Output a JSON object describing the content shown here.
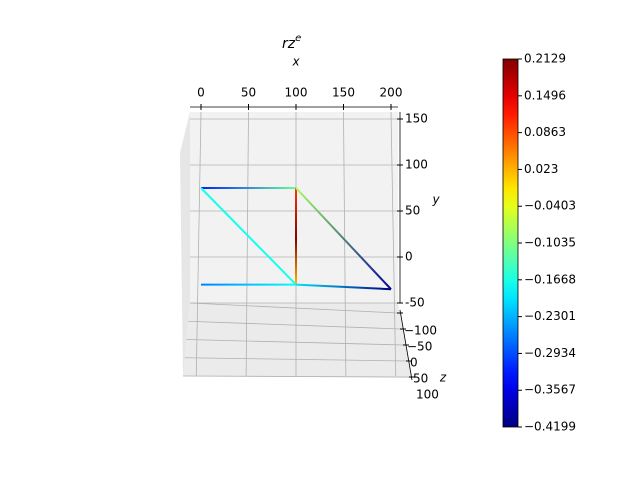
{
  "chart_data": {
    "type": "line3d",
    "title": "rz",
    "title_superscript": "e",
    "xlabel": "x",
    "ylabel": "y",
    "zlabel": "z",
    "xlim": [
      0,
      200
    ],
    "xticks": [
      0,
      50,
      100,
      150,
      200
    ],
    "ylim": [
      -50,
      150
    ],
    "yticks": [
      -50,
      0,
      50,
      100,
      150
    ],
    "zlim": [
      -100,
      100
    ],
    "zticks": [
      {
        "value": -100,
        "label": "−100"
      },
      {
        "value": -50,
        "label": "−50"
      },
      0,
      50,
      100
    ],
    "grid": true,
    "colormap": "jet",
    "clim": [
      -0.4199,
      0.2129
    ],
    "cticks": [
      {
        "value": -0.4199,
        "label": "−0.4199"
      },
      {
        "value": -0.3567,
        "label": "−0.3567"
      },
      {
        "value": -0.2934,
        "label": "−0.2934"
      },
      {
        "value": -0.2301,
        "label": "−0.2301"
      },
      {
        "value": -0.1668,
        "label": "−0.1668"
      },
      {
        "value": -0.1035,
        "label": "−0.1035"
      },
      {
        "value": -0.0403,
        "label": "−0.0403"
      },
      0.023,
      0.0863,
      0.1496,
      0.2129
    ],
    "series": [
      {
        "x": [
          0,
          100
        ],
        "y": [
          75,
          75
        ],
        "c": [
          -0.32,
          -0.12
        ]
      },
      {
        "x": [
          0,
          100
        ],
        "y": [
          75,
          -30
        ],
        "c": [
          -0.17,
          -0.17
        ]
      },
      {
        "x": [
          100,
          100,
          100
        ],
        "y": [
          75,
          20,
          -30
        ],
        "c": [
          0.1,
          0.21,
          0.02
        ]
      },
      {
        "x": [
          100,
          200
        ],
        "y": [
          75,
          -35
        ],
        "c": [
          -0.08,
          -0.4
        ]
      },
      {
        "x": [
          0,
          100
        ],
        "y": [
          -30,
          -30
        ],
        "c": [
          -0.26,
          -0.18
        ]
      },
      {
        "x": [
          100,
          200
        ],
        "y": [
          -30,
          -35
        ],
        "c": [
          -0.2,
          -0.42
        ]
      }
    ]
  }
}
